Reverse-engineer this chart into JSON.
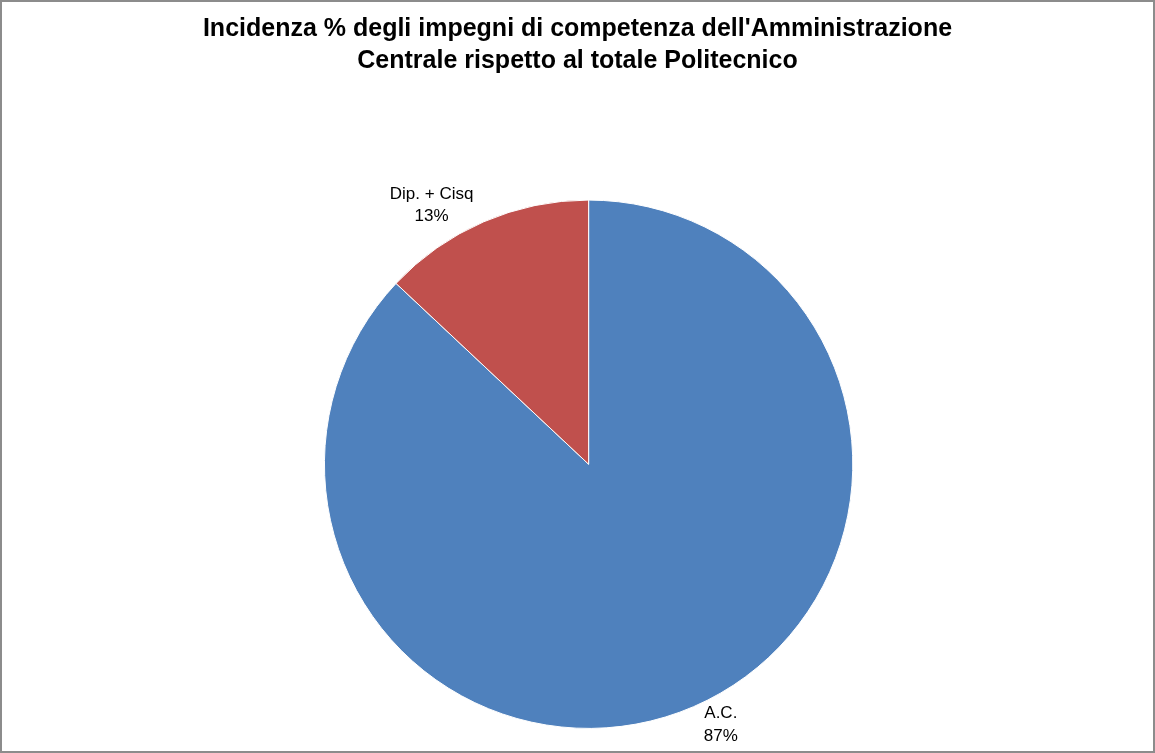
{
  "chart_data": {
    "type": "pie",
    "title": "Incidenza % degli impegni di competenza dell'Amministrazione Centrale rispetto al totale Politecnico",
    "categories": [
      "A.C.",
      "Dip. + Cisq"
    ],
    "values": [
      87,
      13
    ],
    "colors": [
      "#4f81bd",
      "#c0504d"
    ],
    "value_labels": [
      "87%",
      "13%"
    ],
    "legend": false
  }
}
